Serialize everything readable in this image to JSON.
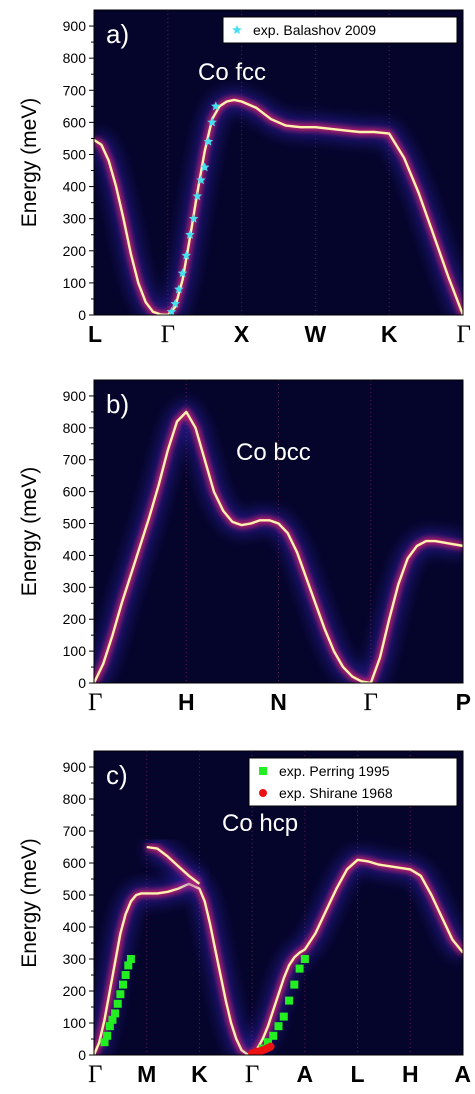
{
  "colors": {
    "background": "#05052b",
    "band": "#fff3b0",
    "balashov": "#48e0ee",
    "perring": "#22ee22",
    "shirane": "#ee1111"
  },
  "chart_data": [
    {
      "type": "heatmap",
      "panel_label": "a)",
      "material": "Co fcc",
      "ylabel": "Energy (meV)",
      "ylim": [
        0,
        950
      ],
      "yticks": [
        0,
        100,
        200,
        300,
        400,
        500,
        600,
        700,
        800,
        900
      ],
      "xlim": [
        0,
        5
      ],
      "kpoints": [
        {
          "label": "L",
          "x": 0
        },
        {
          "label": "Γ",
          "x": 1
        },
        {
          "label": "X",
          "x": 2
        },
        {
          "label": "W",
          "x": 3
        },
        {
          "label": "K",
          "x": 4
        },
        {
          "label": "Γ",
          "x": 5
        }
      ],
      "bands": [
        {
          "x": [
            0,
            0.1,
            0.2,
            0.3,
            0.4,
            0.5,
            0.6,
            0.7,
            0.8,
            0.9,
            1.0,
            1.1,
            1.2,
            1.3,
            1.4,
            1.5,
            1.6,
            1.7,
            1.8,
            1.9,
            2.0,
            2.2,
            2.4,
            2.6,
            2.8,
            3.0,
            3.2,
            3.4,
            3.6,
            3.8,
            4.0,
            4.2,
            4.4,
            4.6,
            4.8,
            5.0
          ],
          "y": [
            545,
            530,
            480,
            400,
            300,
            190,
            100,
            40,
            10,
            2,
            0,
            25,
            110,
            240,
            380,
            510,
            610,
            650,
            665,
            670,
            665,
            645,
            610,
            590,
            585,
            585,
            580,
            575,
            570,
            570,
            565,
            490,
            380,
            250,
            120,
            0
          ]
        }
      ],
      "series": [
        {
          "name": "exp. Balashov 2009",
          "marker": "star",
          "x": [
            1.05,
            1.1,
            1.15,
            1.2,
            1.25,
            1.3,
            1.35,
            1.4,
            1.45,
            1.5,
            1.55,
            1.6,
            1.65
          ],
          "y": [
            10,
            35,
            80,
            130,
            185,
            250,
            300,
            370,
            420,
            460,
            540,
            600,
            650
          ]
        }
      ],
      "legend": "top-right"
    },
    {
      "type": "heatmap",
      "panel_label": "b)",
      "material": "Co bcc",
      "ylabel": "Energy (meV)",
      "ylim": [
        0,
        950
      ],
      "yticks": [
        0,
        100,
        200,
        300,
        400,
        500,
        600,
        700,
        800,
        900
      ],
      "xlim": [
        0,
        4
      ],
      "kpoints": [
        {
          "label": "Γ",
          "x": 0
        },
        {
          "label": "H",
          "x": 1
        },
        {
          "label": "N",
          "x": 2
        },
        {
          "label": "Γ",
          "x": 3
        },
        {
          "label": "P",
          "x": 4
        }
      ],
      "bands": [
        {
          "x": [
            0,
            0.1,
            0.2,
            0.3,
            0.4,
            0.5,
            0.6,
            0.7,
            0.8,
            0.9,
            1.0,
            1.1,
            1.2,
            1.3,
            1.4,
            1.5,
            1.6,
            1.7,
            1.8,
            1.9,
            2.0,
            2.1,
            2.2,
            2.3,
            2.4,
            2.5,
            2.6,
            2.7,
            2.8,
            2.9,
            3.0,
            3.1,
            3.2,
            3.3,
            3.4,
            3.5,
            3.6,
            3.7,
            3.8,
            3.9,
            4.0
          ],
          "y": [
            0,
            60,
            150,
            250,
            340,
            430,
            520,
            620,
            730,
            820,
            850,
            800,
            700,
            600,
            540,
            505,
            495,
            500,
            510,
            510,
            500,
            470,
            410,
            330,
            250,
            170,
            100,
            50,
            20,
            5,
            0,
            80,
            200,
            310,
            390,
            430,
            445,
            445,
            440,
            435,
            430
          ]
        }
      ]
    },
    {
      "type": "heatmap",
      "panel_label": "c)",
      "material": "Co hcp",
      "ylabel": "Energy (meV)",
      "ylim": [
        0,
        950
      ],
      "yticks": [
        0,
        100,
        200,
        300,
        400,
        500,
        600,
        700,
        800,
        900
      ],
      "xlim": [
        0,
        7
      ],
      "kpoints": [
        {
          "label": "Γ",
          "x": 0
        },
        {
          "label": "M",
          "x": 1
        },
        {
          "label": "K",
          "x": 2
        },
        {
          "label": "Γ",
          "x": 3
        },
        {
          "label": "A",
          "x": 4
        },
        {
          "label": "L",
          "x": 5
        },
        {
          "label": "H",
          "x": 6
        },
        {
          "label": "A",
          "x": 7
        }
      ],
      "bands": [
        {
          "x": [
            0,
            0.1,
            0.2,
            0.3,
            0.4,
            0.5,
            0.6,
            0.7,
            0.8,
            0.9,
            1.0,
            1.2,
            1.4,
            1.6,
            1.8,
            2.0,
            2.1,
            2.2,
            2.3,
            2.4,
            2.5,
            2.6,
            2.7,
            2.8,
            2.9,
            3.0
          ],
          "y": [
            0,
            40,
            110,
            200,
            290,
            380,
            440,
            480,
            500,
            505,
            505,
            505,
            510,
            520,
            535,
            520,
            480,
            410,
            330,
            250,
            170,
            100,
            50,
            15,
            3,
            0
          ]
        },
        {
          "x": [
            1.0,
            1.2,
            1.4,
            1.6,
            1.8,
            2.0
          ],
          "y": [
            650,
            645,
            620,
            590,
            560,
            535
          ]
        },
        {
          "x": [
            3.0,
            3.1,
            3.2,
            3.3,
            3.4,
            3.5,
            3.6,
            3.7,
            3.8,
            3.9,
            4.0,
            4.2,
            4.4,
            4.6,
            4.8,
            5.0,
            5.2,
            5.4,
            5.6,
            5.8,
            6.0,
            6.2,
            6.4,
            6.6,
            6.8,
            7.0
          ],
          "y": [
            0,
            20,
            50,
            90,
            140,
            190,
            240,
            280,
            305,
            320,
            330,
            380,
            450,
            520,
            580,
            610,
            605,
            595,
            590,
            585,
            580,
            560,
            500,
            430,
            360,
            320
          ]
        }
      ],
      "series": [
        {
          "name": "exp. Perring 1995",
          "marker": "square",
          "x": [
            0.2,
            0.25,
            0.3,
            0.35,
            0.4,
            0.45,
            0.5,
            0.55,
            0.6,
            0.65,
            0.7,
            3.2,
            3.3,
            3.4,
            3.5,
            3.6,
            3.7,
            3.8,
            3.9,
            4.0
          ],
          "y": [
            40,
            60,
            90,
            110,
            130,
            160,
            190,
            220,
            250,
            280,
            300,
            20,
            40,
            60,
            90,
            120,
            170,
            220,
            270,
            300
          ]
        },
        {
          "name": "exp. Shirane 1968",
          "marker": "circle",
          "x": [
            3.0,
            3.05,
            3.1,
            3.15,
            3.2,
            3.25,
            3.3,
            3.35
          ],
          "y": [
            5,
            8,
            10,
            12,
            15,
            18,
            22,
            26
          ]
        }
      ],
      "legend": "top-right"
    }
  ]
}
